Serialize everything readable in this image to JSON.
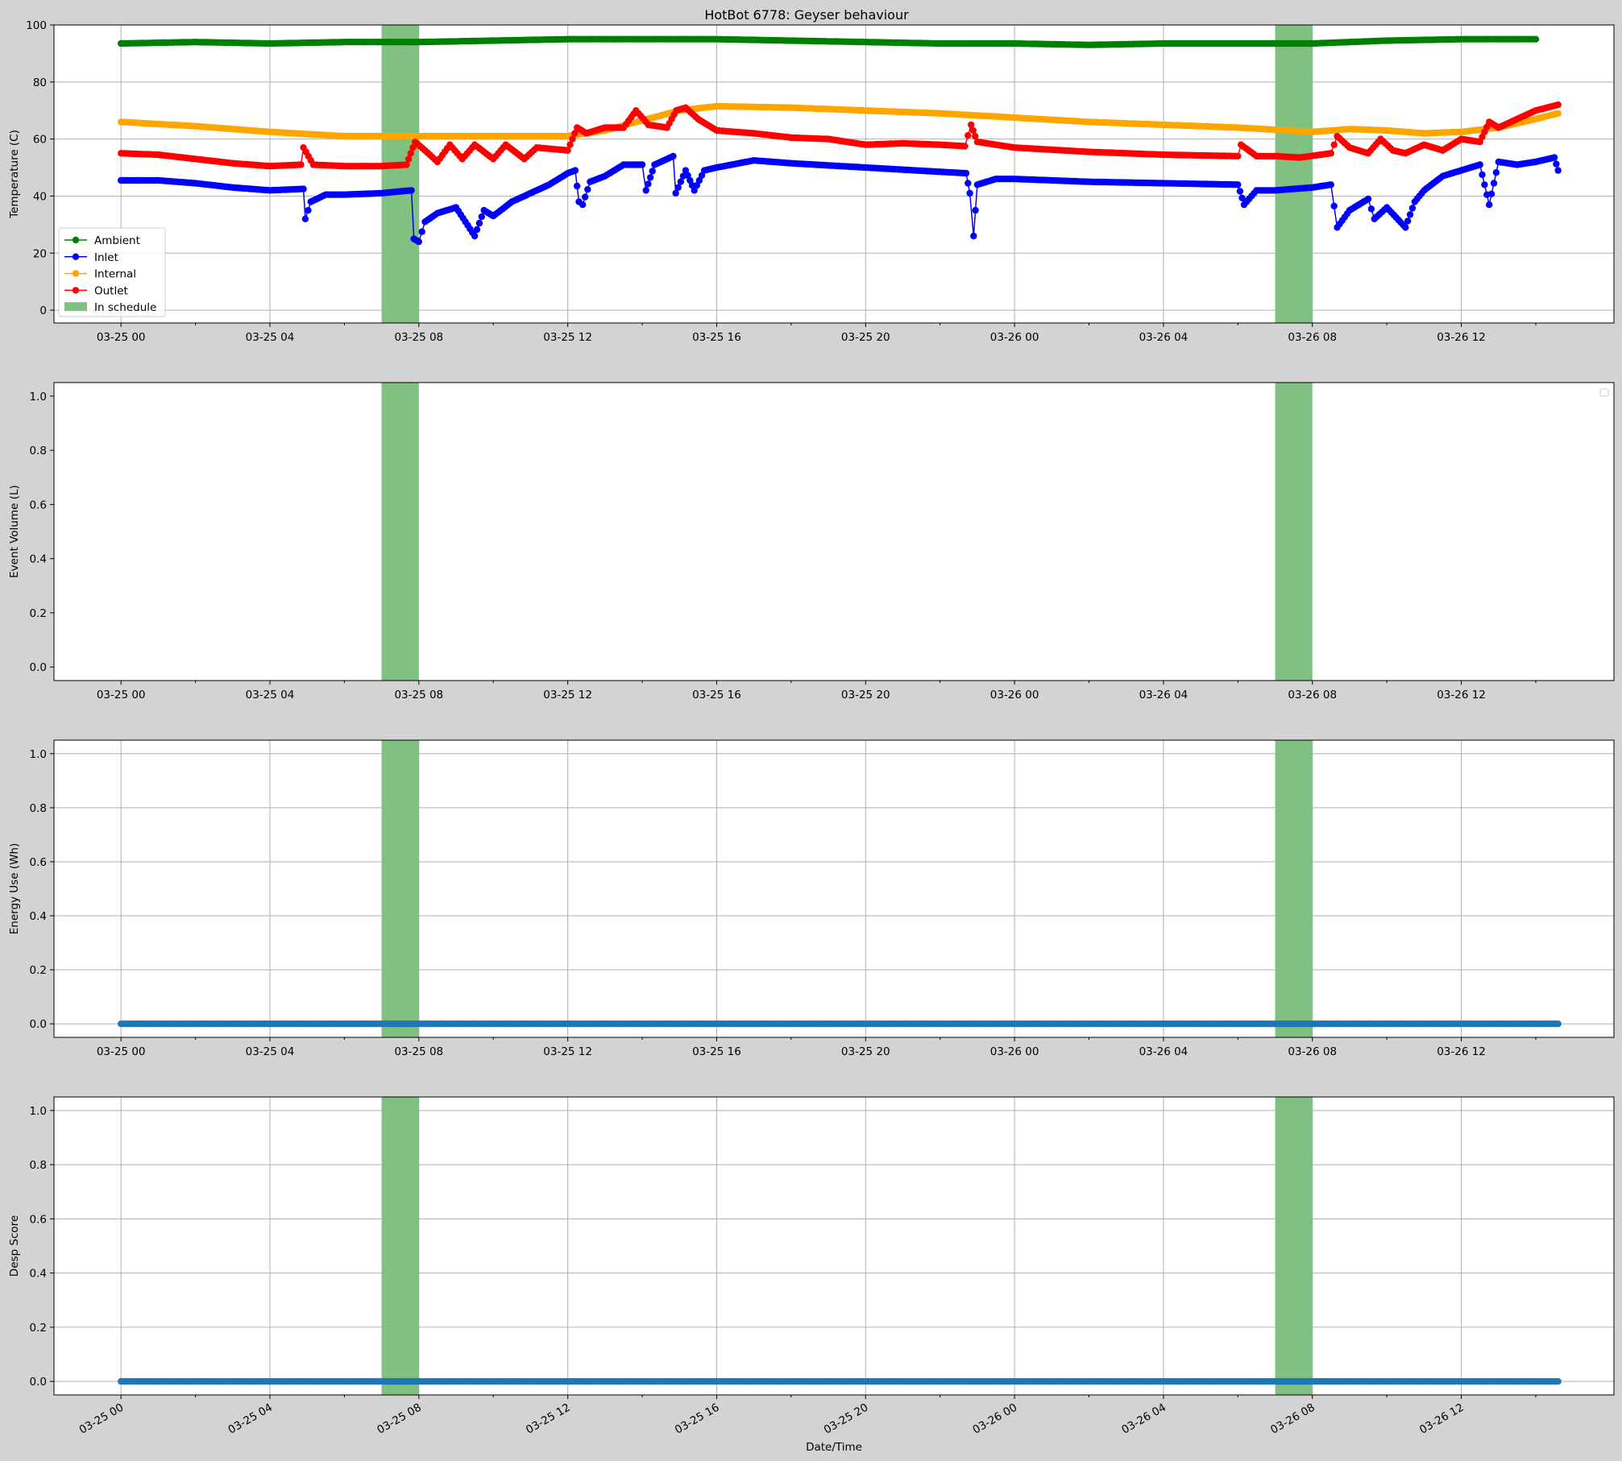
{
  "figure": {
    "background": "#d3d3d3"
  },
  "chart_data": [
    {
      "type": "line",
      "title": "HotBot 6778: Geyser behaviour",
      "xlabel": "",
      "ylabel": "Temperature (C)",
      "xlim_hours": [
        -1.8,
        40.1
      ],
      "ylim": [
        -4.5,
        100
      ],
      "yticks": [
        0,
        20,
        40,
        60,
        80,
        100
      ],
      "xticks": [
        "03-25 00",
        "03-25 04",
        "03-25 08",
        "03-25 12",
        "03-25 16",
        "03-25 20",
        "03-26 00",
        "03-26 04",
        "03-26 08",
        "03-26 12"
      ],
      "grid": true,
      "legend": {
        "position": "lower-left",
        "entries": [
          "Ambient",
          "Inlet",
          "Internal",
          "Outlet",
          "In schedule"
        ]
      },
      "schedule_spans": [
        [
          "03-25 07:00",
          "03-25 08:00"
        ],
        [
          "03-26 07:00",
          "03-26 08:00"
        ]
      ],
      "schedule_label": "In schedule",
      "schedule_color": "#80c080",
      "series": [
        {
          "name": "Ambient",
          "color": "#008000",
          "points": [
            [
              "03-25 00:00",
              93.5
            ],
            [
              "03-25 02:00",
              94
            ],
            [
              "03-25 04:00",
              93.5
            ],
            [
              "03-25 06:00",
              94
            ],
            [
              "03-25 08:00",
              94
            ],
            [
              "03-25 10:00",
              94.5
            ],
            [
              "03-25 12:00",
              95
            ],
            [
              "03-25 14:00",
              95
            ],
            [
              "03-25 16:00",
              95
            ],
            [
              "03-25 18:00",
              94.5
            ],
            [
              "03-25 20:00",
              94
            ],
            [
              "03-25 22:00",
              93.5
            ],
            [
              "03-26 00:00",
              93.5
            ],
            [
              "03-26 02:00",
              93
            ],
            [
              "03-26 04:00",
              93.5
            ],
            [
              "03-26 06:00",
              93.5
            ],
            [
              "03-26 08:00",
              93.5
            ],
            [
              "03-26 10:00",
              94.5
            ],
            [
              "03-26 12:00",
              95
            ],
            [
              "03-26 14:00",
              95
            ]
          ]
        },
        {
          "name": "Inlet",
          "color": "#0000ff",
          "points": [
            [
              "03-25 00:00",
              45.5
            ],
            [
              "03-25 01:00",
              45.5
            ],
            [
              "03-25 02:00",
              44.5
            ],
            [
              "03-25 03:00",
              43
            ],
            [
              "03-25 04:00",
              42
            ],
            [
              "03-25 04:54",
              42.5
            ],
            [
              "03-25 04:57",
              32
            ],
            [
              "03-25 05:06",
              38
            ],
            [
              "03-25 05:30",
              40.5
            ],
            [
              "03-25 06:00",
              40.5
            ],
            [
              "03-25 07:00",
              41
            ],
            [
              "03-25 07:48",
              42
            ],
            [
              "03-25 07:52",
              25
            ],
            [
              "03-25 08:00",
              24
            ],
            [
              "03-25 08:10",
              31
            ],
            [
              "03-25 08:30",
              34
            ],
            [
              "03-25 09:00",
              36
            ],
            [
              "03-25 09:30",
              26
            ],
            [
              "03-25 09:45",
              35
            ],
            [
              "03-25 10:00",
              33
            ],
            [
              "03-25 10:30",
              38
            ],
            [
              "03-25 11:00",
              41
            ],
            [
              "03-25 11:30",
              44
            ],
            [
              "03-25 12:00",
              48
            ],
            [
              "03-25 12:12",
              49
            ],
            [
              "03-25 12:18",
              38
            ],
            [
              "03-25 12:24",
              37
            ],
            [
              "03-25 12:36",
              45
            ],
            [
              "03-25 13:00",
              47
            ],
            [
              "03-25 13:30",
              51
            ],
            [
              "03-25 14:00",
              51
            ],
            [
              "03-25 14:06",
              42
            ],
            [
              "03-25 14:20",
              51
            ],
            [
              "03-25 14:50",
              54
            ],
            [
              "03-25 14:54",
              41
            ],
            [
              "03-25 15:10",
              49
            ],
            [
              "03-25 15:24",
              42
            ],
            [
              "03-25 15:40",
              49
            ],
            [
              "03-25 16:00",
              50
            ],
            [
              "03-25 17:00",
              52.5
            ],
            [
              "03-25 18:00",
              51.5
            ],
            [
              "03-25 20:00",
              50
            ],
            [
              "03-25 22:00",
              48.5
            ],
            [
              "03-25 22:42",
              48
            ],
            [
              "03-25 22:48",
              41
            ],
            [
              "03-25 22:54",
              26
            ],
            [
              "03-25 23:00",
              44
            ],
            [
              "03-25 23:30",
              46
            ],
            [
              "03-26 00:00",
              46
            ],
            [
              "03-26 02:00",
              45
            ],
            [
              "03-26 04:00",
              44.5
            ],
            [
              "03-26 06:00",
              44
            ],
            [
              "03-26 06:10",
              37
            ],
            [
              "03-26 06:30",
              42
            ],
            [
              "03-26 07:00",
              42
            ],
            [
              "03-26 08:00",
              43
            ],
            [
              "03-26 08:30",
              44
            ],
            [
              "03-26 08:40",
              29
            ],
            [
              "03-26 09:00",
              35
            ],
            [
              "03-26 09:30",
              39
            ],
            [
              "03-26 09:40",
              32
            ],
            [
              "03-26 10:00",
              36
            ],
            [
              "03-26 10:30",
              29
            ],
            [
              "03-26 10:45",
              38
            ],
            [
              "03-26 11:00",
              42
            ],
            [
              "03-26 11:30",
              47
            ],
            [
              "03-26 12:00",
              49
            ],
            [
              "03-26 12:30",
              51
            ],
            [
              "03-26 12:45",
              37
            ],
            [
              "03-26 13:00",
              52
            ],
            [
              "03-26 13:30",
              51
            ],
            [
              "03-26 14:00",
              52
            ],
            [
              "03-26 14:30",
              53.5
            ],
            [
              "03-26 14:36",
              49
            ]
          ]
        },
        {
          "name": "Internal",
          "color": "#ffa500",
          "points": [
            [
              "03-25 00:00",
              66
            ],
            [
              "03-25 02:00",
              64.5
            ],
            [
              "03-25 04:00",
              62.5
            ],
            [
              "03-25 06:00",
              61
            ],
            [
              "03-25 08:00",
              61
            ],
            [
              "03-25 10:00",
              61
            ],
            [
              "03-25 12:00",
              61
            ],
            [
              "03-25 13:00",
              63
            ],
            [
              "03-25 14:00",
              66.5
            ],
            [
              "03-25 15:00",
              70
            ],
            [
              "03-25 16:00",
              71.5
            ],
            [
              "03-25 18:00",
              71
            ],
            [
              "03-25 20:00",
              70
            ],
            [
              "03-25 22:00",
              69
            ],
            [
              "03-26 00:00",
              67.5
            ],
            [
              "03-26 02:00",
              66
            ],
            [
              "03-26 04:00",
              65
            ],
            [
              "03-26 06:00",
              64
            ],
            [
              "03-26 08:00",
              62.5
            ],
            [
              "03-26 09:00",
              63.5
            ],
            [
              "03-26 10:00",
              63
            ],
            [
              "03-26 11:00",
              62
            ],
            [
              "03-26 12:00",
              62.5
            ],
            [
              "03-26 13:00",
              64
            ],
            [
              "03-26 14:00",
              67
            ],
            [
              "03-26 14:36",
              69
            ]
          ]
        },
        {
          "name": "Outlet",
          "color": "#ff0000",
          "points": [
            [
              "03-25 00:00",
              55
            ],
            [
              "03-25 01:00",
              54.5
            ],
            [
              "03-25 02:00",
              53
            ],
            [
              "03-25 03:00",
              51.5
            ],
            [
              "03-25 04:00",
              50.5
            ],
            [
              "03-25 04:50",
              51
            ],
            [
              "03-25 04:54",
              57
            ],
            [
              "03-25 05:10",
              51
            ],
            [
              "03-25 06:00",
              50.5
            ],
            [
              "03-25 07:00",
              50.5
            ],
            [
              "03-25 07:40",
              51
            ],
            [
              "03-25 07:54",
              59
            ],
            [
              "03-25 08:10",
              56
            ],
            [
              "03-25 08:30",
              52
            ],
            [
              "03-25 08:50",
              58
            ],
            [
              "03-25 09:10",
              53
            ],
            [
              "03-25 09:30",
              58
            ],
            [
              "03-25 10:00",
              53
            ],
            [
              "03-25 10:20",
              58
            ],
            [
              "03-25 10:50",
              53
            ],
            [
              "03-25 11:10",
              57
            ],
            [
              "03-25 12:00",
              56
            ],
            [
              "03-25 12:15",
              64
            ],
            [
              "03-25 12:30",
              62
            ],
            [
              "03-25 13:00",
              64
            ],
            [
              "03-25 13:30",
              64
            ],
            [
              "03-25 13:50",
              70
            ],
            [
              "03-25 14:10",
              65
            ],
            [
              "03-25 14:40",
              64
            ],
            [
              "03-25 14:55",
              70
            ],
            [
              "03-25 15:10",
              71
            ],
            [
              "03-25 15:30",
              67
            ],
            [
              "03-25 16:00",
              63
            ],
            [
              "03-25 17:00",
              62
            ],
            [
              "03-25 18:00",
              60.5
            ],
            [
              "03-25 19:00",
              60
            ],
            [
              "03-25 20:00",
              58
            ],
            [
              "03-25 21:00",
              58.5
            ],
            [
              "03-25 22:00",
              58
            ],
            [
              "03-25 22:40",
              57.5
            ],
            [
              "03-25 22:50",
              65
            ],
            [
              "03-25 23:00",
              59
            ],
            [
              "03-26 00:00",
              57
            ],
            [
              "03-26 02:00",
              55.5
            ],
            [
              "03-26 04:00",
              54.5
            ],
            [
              "03-26 06:00",
              54
            ],
            [
              "03-26 06:05",
              58
            ],
            [
              "03-26 06:30",
              54
            ],
            [
              "03-26 07:00",
              54
            ],
            [
              "03-26 07:40",
              53.5
            ],
            [
              "03-26 08:30",
              55
            ],
            [
              "03-26 08:40",
              61
            ],
            [
              "03-26 09:00",
              57
            ],
            [
              "03-26 09:30",
              55
            ],
            [
              "03-26 09:50",
              60
            ],
            [
              "03-26 10:10",
              56
            ],
            [
              "03-26 10:30",
              55
            ],
            [
              "03-26 11:00",
              58
            ],
            [
              "03-26 11:30",
              56
            ],
            [
              "03-26 12:00",
              60
            ],
            [
              "03-26 12:30",
              59
            ],
            [
              "03-26 12:45",
              66
            ],
            [
              "03-26 13:00",
              64
            ],
            [
              "03-26 13:30",
              67
            ],
            [
              "03-26 14:00",
              70
            ],
            [
              "03-26 14:36",
              72
            ]
          ]
        }
      ]
    },
    {
      "type": "scatter",
      "ylabel": "Event Volume (L)",
      "xlabel": "",
      "ylim": [
        -0.05,
        1.05
      ],
      "yticks": [
        "0.0",
        "0.2",
        "0.4",
        "0.6",
        "0.8",
        "1.0"
      ],
      "xticks": [
        "03-25 00",
        "03-25 04",
        "03-25 08",
        "03-25 12",
        "03-25 16",
        "03-25 20",
        "03-26 00",
        "03-26 04",
        "03-26 08",
        "03-26 12"
      ],
      "grid": false,
      "legend": {
        "position": "top-right",
        "entries": []
      },
      "series": []
    },
    {
      "type": "scatter",
      "ylabel": "Energy Use (Wh)",
      "xlabel": "",
      "ylim": [
        -0.05,
        1.05
      ],
      "yticks": [
        "0.0",
        "0.2",
        "0.4",
        "0.6",
        "0.8",
        "1.0"
      ],
      "xticks": [
        "03-25 00",
        "03-25 04",
        "03-25 08",
        "03-25 12",
        "03-25 16",
        "03-25 20",
        "03-26 00",
        "03-26 04",
        "03-26 08",
        "03-26 12"
      ],
      "grid": true,
      "series": [
        {
          "color": "#1f77b4",
          "x_range": [
            "03-25 00:00",
            "03-26 14:36"
          ],
          "value": 0
        }
      ]
    },
    {
      "type": "scatter",
      "ylabel": "Desp Score",
      "xlabel": "Date/Time",
      "ylim": [
        -0.05,
        1.05
      ],
      "yticks": [
        "0.0",
        "0.2",
        "0.4",
        "0.6",
        "0.8",
        "1.0"
      ],
      "xticks": [
        "03-25 00",
        "03-25 04",
        "03-25 08",
        "03-25 12",
        "03-25 16",
        "03-25 20",
        "03-26 00",
        "03-26 04",
        "03-26 08",
        "03-26 12"
      ],
      "xtick_rotation": "rotated",
      "grid": true,
      "series": [
        {
          "color": "#1f77b4",
          "x_range": [
            "03-25 00:00",
            "03-26 14:36"
          ],
          "value": 0
        }
      ]
    }
  ]
}
